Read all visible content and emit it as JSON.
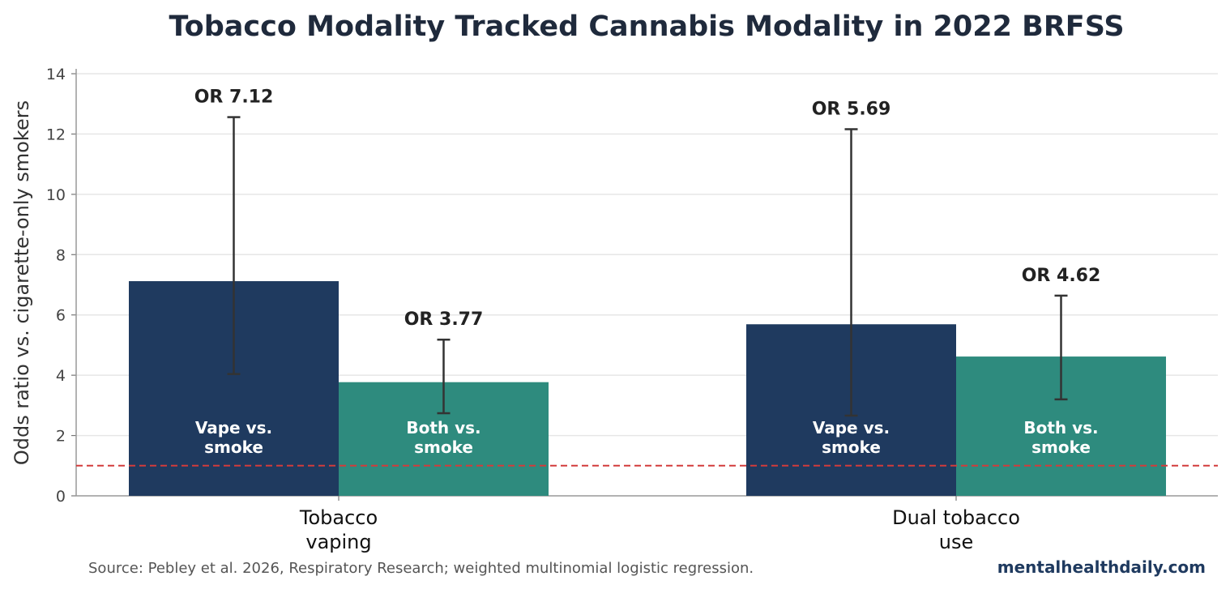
{
  "chart_data": {
    "type": "bar",
    "title": "Tobacco Modality Tracked Cannabis Modality in 2022 BRFSS",
    "ylabel": "Odds ratio vs. cigarette-only smokers",
    "xlabel": "",
    "ylim": [
      0,
      14
    ],
    "yticks": [
      0,
      2,
      4,
      6,
      8,
      10,
      12,
      14
    ],
    "grid": true,
    "reference_line": {
      "y": 1,
      "color": "#d23b3b",
      "style": "dashed"
    },
    "categories": [
      [
        "Tobacco",
        "vaping"
      ],
      [
        "Dual tobacco",
        "use"
      ]
    ],
    "bars": [
      {
        "group": 0,
        "pos": 0,
        "value": 7.12,
        "ci": [
          4.04,
          12.56
        ],
        "label": "OR 7.12",
        "inner_label": [
          "Vape vs.",
          "smoke"
        ],
        "color": "#1f3a5f"
      },
      {
        "group": 0,
        "pos": 1,
        "value": 3.77,
        "ci": [
          2.74,
          5.18
        ],
        "label": "OR 3.77",
        "inner_label": [
          "Both vs.",
          "smoke"
        ],
        "color": "#2e8b7e"
      },
      {
        "group": 1,
        "pos": 0,
        "value": 5.69,
        "ci": [
          2.66,
          12.16
        ],
        "label": "OR 5.69",
        "inner_label": [
          "Vape vs.",
          "smoke"
        ],
        "color": "#1f3a5f"
      },
      {
        "group": 1,
        "pos": 1,
        "value": 4.62,
        "ci": [
          3.2,
          6.64
        ],
        "label": "OR 4.62",
        "inner_label": [
          "Both vs.",
          "smoke"
        ],
        "color": "#2e8b7e"
      }
    ]
  },
  "footer": {
    "source": "Source: Pebley et al. 2026, Respiratory Research; weighted multinomial logistic regression.",
    "brand": "mentalhealthdaily.com"
  }
}
